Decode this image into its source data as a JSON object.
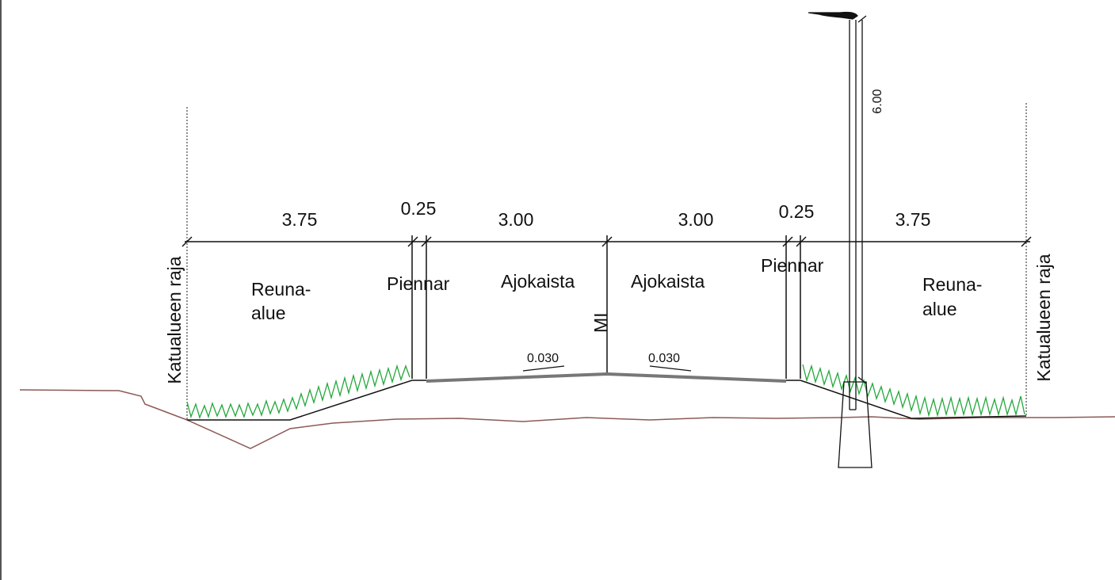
{
  "dimensions": {
    "left_edge": "3.75",
    "left_shoulder": "0.25",
    "left_lane": "3.00",
    "right_lane": "3.00",
    "right_shoulder": "0.25",
    "right_edge": "3.75",
    "pole_height": "6.00"
  },
  "labels": {
    "boundary_left": "Katualueen raja",
    "boundary_right": "Katualueen raja",
    "edge_left_line1": "Reuna-",
    "edge_left_line2": "alue",
    "edge_right_line1": "Reuna-",
    "edge_right_line2": "alue",
    "shoulder_left": "Piennar",
    "shoulder_right": "Piennar",
    "lane_left": "Ajokaista",
    "lane_right": "Ajokaista",
    "centerline": "MI",
    "slope_left": "0.030",
    "slope_right": "0.030"
  },
  "colors": {
    "line": "#111111",
    "terrain": "#8b5a55",
    "grass": "#22a83a",
    "pavement": "#777777"
  }
}
